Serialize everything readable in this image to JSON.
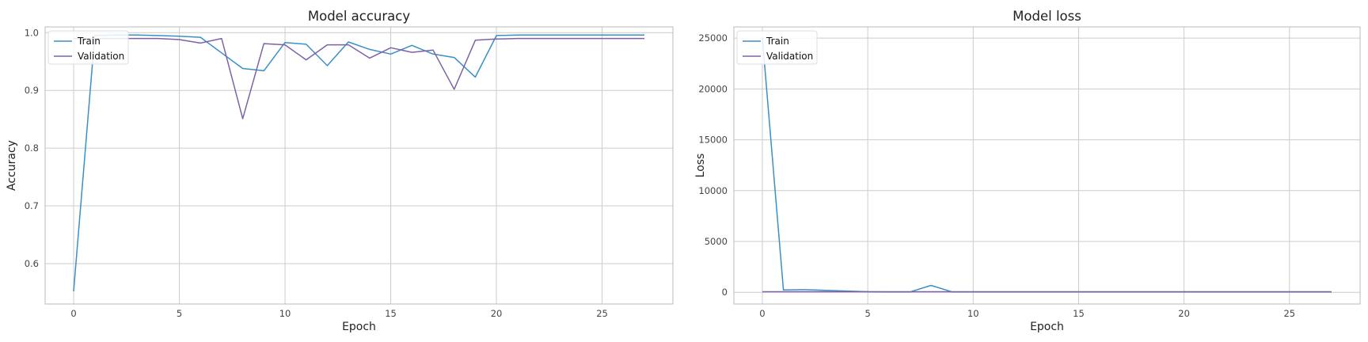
{
  "chart_data": [
    {
      "type": "line",
      "title": "Model accuracy",
      "xlabel": "Epoch",
      "ylabel": "Accuracy",
      "xlim": [
        -1.35,
        28.35
      ],
      "ylim": [
        0.53,
        1.01
      ],
      "xticks": [
        0,
        5,
        10,
        15,
        20,
        25
      ],
      "yticks": [
        0.6,
        0.7,
        0.8,
        0.9,
        1.0
      ],
      "ytick_labels": [
        "0.6",
        "0.7",
        "0.8",
        "0.9",
        "1.0"
      ],
      "grid": true,
      "legend_position": "upper-left",
      "x": [
        0,
        1,
        2,
        3,
        4,
        5,
        6,
        7,
        8,
        9,
        10,
        11,
        12,
        13,
        14,
        15,
        16,
        17,
        18,
        19,
        20,
        21,
        22,
        23,
        24,
        25,
        26,
        27
      ],
      "series": [
        {
          "name": "Train",
          "color": "#3a8fc7",
          "values": [
            0.552,
            0.995,
            0.996,
            0.996,
            0.995,
            0.994,
            0.992,
            0.965,
            0.938,
            0.934,
            0.983,
            0.98,
            0.943,
            0.984,
            0.971,
            0.963,
            0.978,
            0.963,
            0.957,
            0.923,
            0.995,
            0.996,
            0.996,
            0.996,
            0.996,
            0.996,
            0.996,
            0.996
          ]
        },
        {
          "name": "Validation",
          "color": "#7d62a8",
          "values": [
            0.99,
            0.99,
            0.99,
            0.99,
            0.99,
            0.988,
            0.982,
            0.99,
            0.851,
            0.981,
            0.979,
            0.953,
            0.979,
            0.979,
            0.956,
            0.974,
            0.966,
            0.97,
            0.902,
            0.987,
            0.989,
            0.99,
            0.99,
            0.99,
            0.99,
            0.99,
            0.99,
            0.99
          ]
        }
      ]
    },
    {
      "type": "line",
      "title": "Model loss",
      "xlabel": "Epoch",
      "ylabel": "Loss",
      "xlim": [
        -1.35,
        28.35
      ],
      "ylim": [
        -1150,
        26100
      ],
      "xticks": [
        0,
        5,
        10,
        15,
        20,
        25
      ],
      "yticks": [
        0,
        5000,
        10000,
        15000,
        20000,
        25000
      ],
      "ytick_labels": [
        "0",
        "5000",
        "10000",
        "15000",
        "20000",
        "25000"
      ],
      "grid": true,
      "legend_position": "upper-left",
      "x": [
        0,
        1,
        2,
        3,
        4,
        5,
        6,
        7,
        8,
        9,
        10,
        11,
        12,
        13,
        14,
        15,
        16,
        17,
        18,
        19,
        20,
        21,
        22,
        23,
        24,
        25,
        26,
        27
      ],
      "series": [
        {
          "name": "Train",
          "color": "#3a8fc7",
          "values": [
            25000,
            230,
            260,
            200,
            130,
            60,
            40,
            30,
            680,
            40,
            30,
            30,
            30,
            30,
            30,
            30,
            30,
            30,
            30,
            30,
            30,
            30,
            30,
            30,
            30,
            30,
            30,
            30
          ]
        },
        {
          "name": "Validation",
          "color": "#7d62a8",
          "values": [
            60,
            60,
            60,
            60,
            60,
            60,
            60,
            60,
            60,
            60,
            60,
            60,
            60,
            60,
            60,
            60,
            60,
            60,
            60,
            60,
            60,
            60,
            60,
            60,
            60,
            60,
            60,
            60
          ]
        }
      ]
    }
  ]
}
